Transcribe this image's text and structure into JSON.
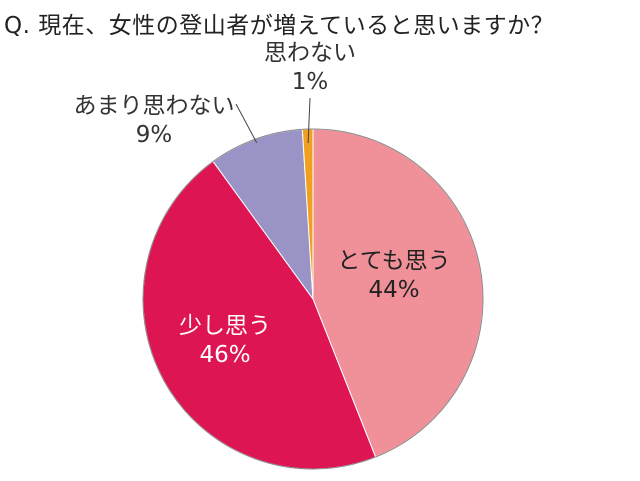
{
  "chart_data": {
    "type": "pie",
    "title": "Q. 現在、女性の登山者が増えていると思いますか？",
    "slices": [
      {
        "label": "とても思う",
        "value": 44,
        "value_label": "44%",
        "color": "#f0919a",
        "text_color": "#222222"
      },
      {
        "label": "少し思う",
        "value": 46,
        "value_label": "46%",
        "color": "#de1553",
        "text_color": "#ffffff"
      },
      {
        "label": "あまり思わない",
        "value": 9,
        "value_label": "9%",
        "color": "#9a94c6",
        "text_color": "#333333"
      },
      {
        "label": "思わない",
        "value": 1,
        "value_label": "1%",
        "color": "#f0a020",
        "text_color": "#333333"
      }
    ],
    "start_angle_deg": 0,
    "direction": "clockwise",
    "legend": "none"
  }
}
